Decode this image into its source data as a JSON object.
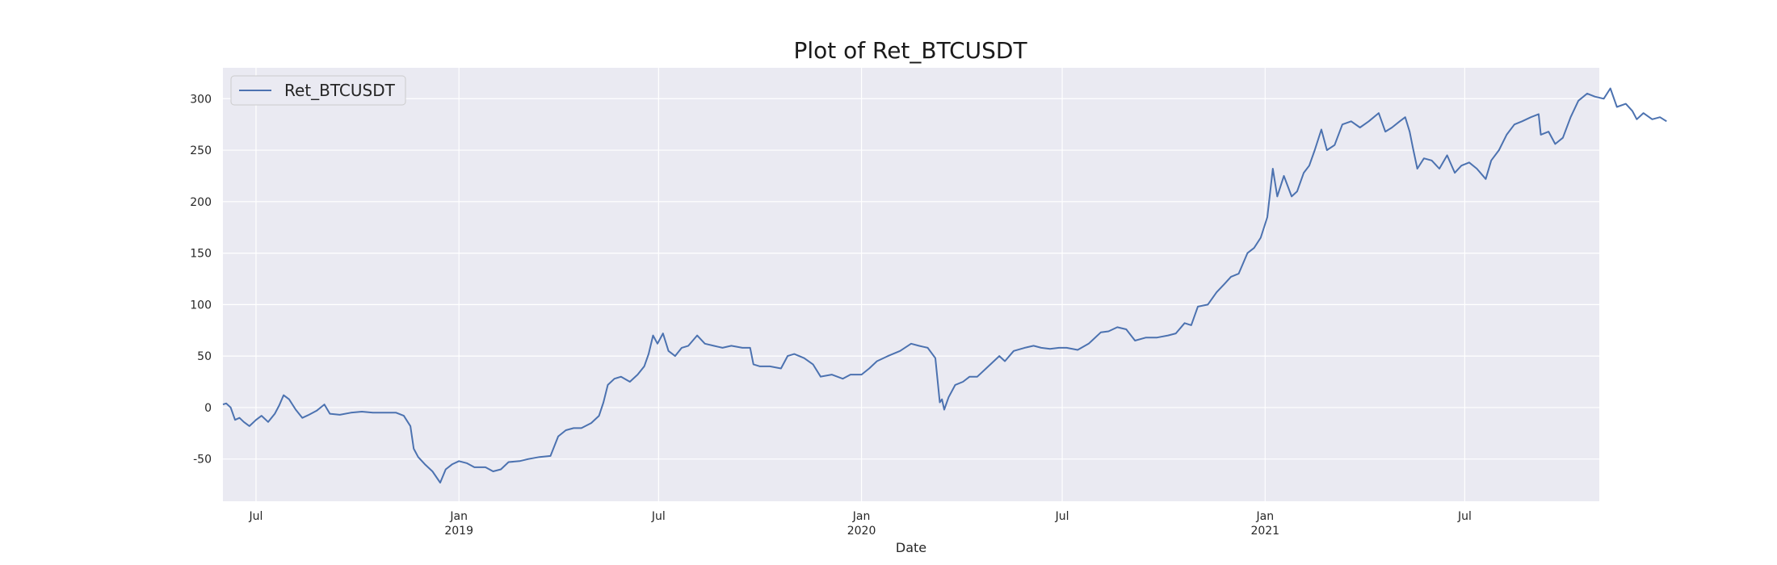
{
  "chart_data": {
    "type": "line",
    "title": "Plot of Ret_BTCUSDT",
    "xlabel": "Date",
    "ylabel": "",
    "x_range": [
      "2018-06-01",
      "2021-10-31"
    ],
    "ylim": [
      -91,
      330
    ],
    "y_ticks": [
      -50,
      0,
      50,
      100,
      150,
      200,
      250,
      300
    ],
    "x_ticks": [
      {
        "date": "2018-07-01",
        "label": "Jul",
        "sublabel": ""
      },
      {
        "date": "2019-01-01",
        "label": "Jan",
        "sublabel": "2019"
      },
      {
        "date": "2019-07-01",
        "label": "Jul",
        "sublabel": ""
      },
      {
        "date": "2020-01-01",
        "label": "Jan",
        "sublabel": "2020"
      },
      {
        "date": "2020-07-01",
        "label": "Jul",
        "sublabel": ""
      },
      {
        "date": "2021-01-01",
        "label": "Jan",
        "sublabel": "2021"
      },
      {
        "date": "2021-07-01",
        "label": "Jul",
        "sublabel": ""
      }
    ],
    "grid": true,
    "legend_position": "top-left",
    "colors": {
      "background": "#eaeaf2",
      "grid": "#ffffff",
      "line": "#4c72b0"
    },
    "series": [
      {
        "name": "Ret_BTCUSDT",
        "points": [
          [
            "2018-06-01",
            3
          ],
          [
            "2018-06-04",
            4
          ],
          [
            "2018-06-08",
            0
          ],
          [
            "2018-06-12",
            -12
          ],
          [
            "2018-06-16",
            -10
          ],
          [
            "2018-06-20",
            -14
          ],
          [
            "2018-06-25",
            -18
          ],
          [
            "2018-07-01",
            -12
          ],
          [
            "2018-07-06",
            -8
          ],
          [
            "2018-07-12",
            -14
          ],
          [
            "2018-07-18",
            -6
          ],
          [
            "2018-07-22",
            2
          ],
          [
            "2018-07-26",
            12
          ],
          [
            "2018-07-31",
            8
          ],
          [
            "2018-08-06",
            -2
          ],
          [
            "2018-08-12",
            -10
          ],
          [
            "2018-08-18",
            -7
          ],
          [
            "2018-08-25",
            -3
          ],
          [
            "2018-09-01",
            3
          ],
          [
            "2018-09-06",
            -6
          ],
          [
            "2018-09-15",
            -7
          ],
          [
            "2018-09-25",
            -5
          ],
          [
            "2018-10-05",
            -4
          ],
          [
            "2018-10-15",
            -5
          ],
          [
            "2018-10-25",
            -5
          ],
          [
            "2018-11-05",
            -5
          ],
          [
            "2018-11-12",
            -8
          ],
          [
            "2018-11-18",
            -18
          ],
          [
            "2018-11-21",
            -40
          ],
          [
            "2018-11-25",
            -48
          ],
          [
            "2018-12-01",
            -55
          ],
          [
            "2018-12-08",
            -62
          ],
          [
            "2018-12-15",
            -73
          ],
          [
            "2018-12-20",
            -60
          ],
          [
            "2018-12-26",
            -55
          ],
          [
            "2019-01-01",
            -52
          ],
          [
            "2019-01-08",
            -54
          ],
          [
            "2019-01-15",
            -58
          ],
          [
            "2019-01-25",
            -58
          ],
          [
            "2019-02-01",
            -62
          ],
          [
            "2019-02-08",
            -60
          ],
          [
            "2019-02-15",
            -53
          ],
          [
            "2019-02-25",
            -52
          ],
          [
            "2019-03-05",
            -50
          ],
          [
            "2019-03-15",
            -48
          ],
          [
            "2019-03-25",
            -47
          ],
          [
            "2019-04-01",
            -28
          ],
          [
            "2019-04-08",
            -22
          ],
          [
            "2019-04-15",
            -20
          ],
          [
            "2019-04-22",
            -20
          ],
          [
            "2019-05-01",
            -15
          ],
          [
            "2019-05-08",
            -8
          ],
          [
            "2019-05-12",
            5
          ],
          [
            "2019-05-16",
            22
          ],
          [
            "2019-05-22",
            28
          ],
          [
            "2019-05-28",
            30
          ],
          [
            "2019-06-05",
            25
          ],
          [
            "2019-06-12",
            32
          ],
          [
            "2019-06-18",
            40
          ],
          [
            "2019-06-22",
            52
          ],
          [
            "2019-06-26",
            70
          ],
          [
            "2019-06-30",
            62
          ],
          [
            "2019-07-05",
            72
          ],
          [
            "2019-07-10",
            55
          ],
          [
            "2019-07-16",
            50
          ],
          [
            "2019-07-22",
            58
          ],
          [
            "2019-07-28",
            60
          ],
          [
            "2019-08-05",
            70
          ],
          [
            "2019-08-12",
            62
          ],
          [
            "2019-08-20",
            60
          ],
          [
            "2019-08-28",
            58
          ],
          [
            "2019-09-05",
            60
          ],
          [
            "2019-09-15",
            58
          ],
          [
            "2019-09-22",
            58
          ],
          [
            "2019-09-25",
            42
          ],
          [
            "2019-10-01",
            40
          ],
          [
            "2019-10-10",
            40
          ],
          [
            "2019-10-20",
            38
          ],
          [
            "2019-10-26",
            50
          ],
          [
            "2019-11-01",
            52
          ],
          [
            "2019-11-10",
            48
          ],
          [
            "2019-11-18",
            42
          ],
          [
            "2019-11-25",
            30
          ],
          [
            "2019-12-05",
            32
          ],
          [
            "2019-12-15",
            28
          ],
          [
            "2019-12-22",
            32
          ],
          [
            "2020-01-01",
            32
          ],
          [
            "2020-01-08",
            38
          ],
          [
            "2020-01-15",
            45
          ],
          [
            "2020-01-25",
            50
          ],
          [
            "2020-02-05",
            55
          ],
          [
            "2020-02-15",
            62
          ],
          [
            "2020-02-22",
            60
          ],
          [
            "2020-03-01",
            58
          ],
          [
            "2020-03-08",
            48
          ],
          [
            "2020-03-12",
            5
          ],
          [
            "2020-03-14",
            8
          ],
          [
            "2020-03-16",
            -2
          ],
          [
            "2020-03-20",
            10
          ],
          [
            "2020-03-26",
            22
          ],
          [
            "2020-04-02",
            25
          ],
          [
            "2020-04-08",
            30
          ],
          [
            "2020-04-15",
            30
          ],
          [
            "2020-04-25",
            40
          ],
          [
            "2020-05-05",
            50
          ],
          [
            "2020-05-10",
            45
          ],
          [
            "2020-05-18",
            55
          ],
          [
            "2020-05-28",
            58
          ],
          [
            "2020-06-05",
            60
          ],
          [
            "2020-06-12",
            58
          ],
          [
            "2020-06-20",
            57
          ],
          [
            "2020-06-28",
            58
          ],
          [
            "2020-07-05",
            58
          ],
          [
            "2020-07-15",
            56
          ],
          [
            "2020-07-25",
            62
          ],
          [
            "2020-07-28",
            65
          ],
          [
            "2020-08-05",
            73
          ],
          [
            "2020-08-12",
            74
          ],
          [
            "2020-08-20",
            78
          ],
          [
            "2020-08-28",
            76
          ],
          [
            "2020-09-05",
            65
          ],
          [
            "2020-09-15",
            68
          ],
          [
            "2020-09-25",
            68
          ],
          [
            "2020-10-05",
            70
          ],
          [
            "2020-10-12",
            72
          ],
          [
            "2020-10-20",
            82
          ],
          [
            "2020-10-26",
            80
          ],
          [
            "2020-11-01",
            98
          ],
          [
            "2020-11-10",
            100
          ],
          [
            "2020-11-18",
            112
          ],
          [
            "2020-11-25",
            120
          ],
          [
            "2020-12-01",
            127
          ],
          [
            "2020-12-08",
            130
          ],
          [
            "2020-12-16",
            150
          ],
          [
            "2020-12-22",
            155
          ],
          [
            "2020-12-28",
            165
          ],
          [
            "2021-01-03",
            185
          ],
          [
            "2021-01-08",
            232
          ],
          [
            "2021-01-12",
            205
          ],
          [
            "2021-01-18",
            225
          ],
          [
            "2021-01-25",
            205
          ],
          [
            "2021-01-30",
            210
          ],
          [
            "2021-02-05",
            228
          ],
          [
            "2021-02-10",
            235
          ],
          [
            "2021-02-15",
            250
          ],
          [
            "2021-02-21",
            270
          ],
          [
            "2021-02-26",
            250
          ],
          [
            "2021-03-05",
            255
          ],
          [
            "2021-03-12",
            275
          ],
          [
            "2021-03-20",
            278
          ],
          [
            "2021-03-28",
            272
          ],
          [
            "2021-04-05",
            278
          ],
          [
            "2021-04-14",
            286
          ],
          [
            "2021-04-20",
            268
          ],
          [
            "2021-04-26",
            272
          ],
          [
            "2021-05-03",
            278
          ],
          [
            "2021-05-08",
            282
          ],
          [
            "2021-05-12",
            268
          ],
          [
            "2021-05-15",
            252
          ],
          [
            "2021-05-19",
            232
          ],
          [
            "2021-05-25",
            242
          ],
          [
            "2021-06-01",
            240
          ],
          [
            "2021-06-08",
            232
          ],
          [
            "2021-06-15",
            245
          ],
          [
            "2021-06-22",
            228
          ],
          [
            "2021-06-28",
            235
          ],
          [
            "2021-07-05",
            238
          ],
          [
            "2021-07-12",
            232
          ],
          [
            "2021-07-20",
            222
          ],
          [
            "2021-07-25",
            240
          ],
          [
            "2021-08-01",
            250
          ],
          [
            "2021-08-08",
            265
          ],
          [
            "2021-08-15",
            275
          ],
          [
            "2021-08-22",
            278
          ],
          [
            "2021-08-30",
            282
          ],
          [
            "2021-09-06",
            285
          ],
          [
            "2021-09-08",
            265
          ],
          [
            "2021-09-15",
            268
          ],
          [
            "2021-09-21",
            256
          ],
          [
            "2021-09-28",
            262
          ],
          [
            "2021-10-05",
            282
          ],
          [
            "2021-10-12",
            298
          ],
          [
            "2021-10-20",
            305
          ],
          [
            "2021-10-27",
            302
          ],
          [
            "2021-11-04",
            300
          ],
          [
            "2021-11-10",
            310
          ],
          [
            "2021-11-16",
            292
          ],
          [
            "2021-11-24",
            295
          ],
          [
            "2021-11-30",
            288
          ],
          [
            "2021-12-04",
            280
          ],
          [
            "2021-12-10",
            286
          ],
          [
            "2021-12-18",
            280
          ],
          [
            "2021-12-25",
            282
          ],
          [
            "2021-12-31",
            278
          ]
        ]
      }
    ]
  }
}
